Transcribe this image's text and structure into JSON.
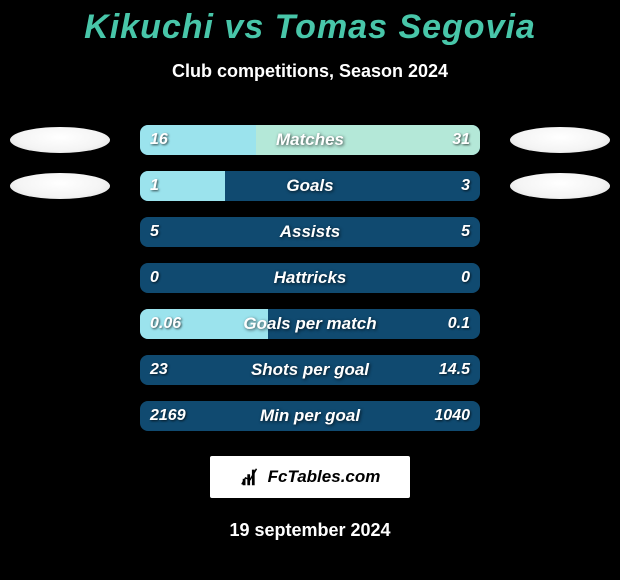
{
  "title_text": "Kikuchi vs Tomas Segovia",
  "title_color": "#48c6a9",
  "subtitle": "Club competitions, Season 2024",
  "date": "19 september 2024",
  "logo_text": "FcTables.com",
  "chart": {
    "track_width": 340,
    "track_bg": "#104a70",
    "left_color": "#9be3ed",
    "right_color": "#b4e8d8",
    "label_color": "#ffffff",
    "metrics": [
      {
        "name": "Matches",
        "left_val": "16",
        "right_val": "31",
        "left_w": 116,
        "right_w": 224,
        "ellipse": true
      },
      {
        "name": "Goals",
        "left_val": "1",
        "right_val": "3",
        "left_w": 85,
        "right_w": 0,
        "ellipse": true
      },
      {
        "name": "Assists",
        "left_val": "5",
        "right_val": "5",
        "left_w": 0,
        "right_w": 0,
        "ellipse": false
      },
      {
        "name": "Hattricks",
        "left_val": "0",
        "right_val": "0",
        "left_w": 0,
        "right_w": 0,
        "ellipse": false
      },
      {
        "name": "Goals per match",
        "left_val": "0.06",
        "right_val": "0.1",
        "left_w": 128,
        "right_w": 0,
        "ellipse": false
      },
      {
        "name": "Shots per goal",
        "left_val": "23",
        "right_val": "14.5",
        "left_w": 0,
        "right_w": 0,
        "ellipse": false
      },
      {
        "name": "Min per goal",
        "left_val": "2169",
        "right_val": "1040",
        "left_w": 0,
        "right_w": 0,
        "ellipse": false
      }
    ]
  }
}
